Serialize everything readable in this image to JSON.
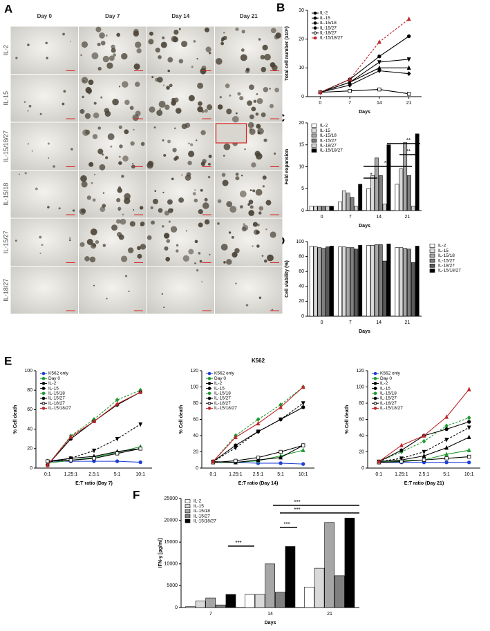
{
  "panels": [
    "A",
    "B",
    "C",
    "D",
    "E",
    "F"
  ],
  "micrographs": {
    "columns": [
      "Day 0",
      "Day 7",
      "Day 14",
      "Day 21"
    ],
    "rows": [
      "IL-2",
      "IL-15",
      "IL-15/18/27",
      "IL-15/18",
      "IL-15/27",
      "IL-18/27"
    ]
  },
  "chart_data": [
    {
      "type": "line",
      "ylabel": "Total cell number (x10⁶)",
      "xlabel": "Days",
      "x": [
        0,
        7,
        14,
        21
      ],
      "xlim": [
        -3,
        24
      ],
      "xticks": [
        0,
        7,
        14,
        21
      ],
      "ylim": [
        0,
        30
      ],
      "yticks": [
        0,
        10,
        20,
        30
      ],
      "legend": "top-left",
      "series": [
        {
          "name": "IL-2",
          "color": "#000000",
          "marker": "triangle",
          "values": [
            1.5,
            5,
            10,
            10
          ]
        },
        {
          "name": "IL-15",
          "color": "#000000",
          "marker": "triangle-down",
          "values": [
            1.5,
            5,
            12,
            13
          ]
        },
        {
          "name": "IL-15/18",
          "color": "#000000",
          "marker": "circle",
          "values": [
            1.5,
            6,
            14,
            21
          ]
        },
        {
          "name": "IL-15/27",
          "color": "#000000",
          "marker": "diamond",
          "values": [
            1.5,
            4,
            9,
            8
          ]
        },
        {
          "name": "IL-18/27",
          "color": "#000000",
          "marker": "open-square",
          "values": [
            1.5,
            2,
            2.5,
            1
          ]
        },
        {
          "name": "IL-15/18/27",
          "color": "#c0272d",
          "marker": "triangle",
          "dashed": true,
          "values": [
            1.5,
            6,
            19,
            27
          ]
        }
      ]
    },
    {
      "type": "bar",
      "ylabel": "Fold expansion",
      "xlabel": "Days",
      "categories": [
        "0",
        "7",
        "14",
        "21"
      ],
      "ylim": [
        0,
        20
      ],
      "yticks": [
        0,
        5,
        10,
        15,
        20
      ],
      "legend": "top-left",
      "annotations": [
        "*",
        "**",
        "**",
        "**"
      ],
      "series": [
        {
          "name": "IL-2",
          "color": "#ffffff",
          "values": [
            1,
            2,
            5,
            6
          ]
        },
        {
          "name": "IL-15",
          "color": "#d9d9d9",
          "values": [
            1,
            4.5,
            8,
            9.5
          ]
        },
        {
          "name": "IL-15/18",
          "color": "#a6a6a6",
          "values": [
            1,
            4,
            12,
            15.5
          ]
        },
        {
          "name": "IL-15/27",
          "color": "#7f7f7f",
          "values": [
            1,
            3,
            8,
            8
          ]
        },
        {
          "name": "IL-18/27",
          "color": "#d0d0d0",
          "values": [
            1,
            1,
            1.5,
            1
          ]
        },
        {
          "name": "IL-15/18/27",
          "color": "#000000",
          "values": [
            1,
            6,
            15,
            17.5
          ]
        }
      ]
    },
    {
      "type": "bar",
      "ylabel": "Cell viability (%)",
      "xlabel": "Days",
      "categories": [
        "0",
        "7",
        "14",
        "21"
      ],
      "ylim": [
        0,
        100
      ],
      "yticks": [
        0,
        20,
        40,
        60,
        80,
        100
      ],
      "legend": "right",
      "series": [
        {
          "name": "IL-2",
          "color": "#ffffff",
          "values": [
            94,
            93,
            95,
            92
          ]
        },
        {
          "name": "IL-15",
          "color": "#d9d9d9",
          "values": [
            93,
            93,
            95,
            92
          ]
        },
        {
          "name": "IL-15/18",
          "color": "#a6a6a6",
          "values": [
            92,
            92,
            96,
            91
          ]
        },
        {
          "name": "IL-15/27",
          "color": "#7f7f7f",
          "values": [
            91,
            92,
            96,
            90
          ]
        },
        {
          "name": "IL-18/27",
          "color": "#595959",
          "values": [
            93,
            90,
            74,
            72
          ]
        },
        {
          "name": "IL-15/18/27",
          "color": "#000000",
          "values": [
            94,
            95,
            97,
            94
          ]
        }
      ]
    },
    {
      "type": "line",
      "ylabel": "% Cell death",
      "xlabel": "E:T ratio (Day 7)",
      "categories": [
        "0:1",
        "1.25:1",
        "2.5:1",
        "5:1",
        "10:1"
      ],
      "ylim": [
        0,
        100
      ],
      "yticks": [
        0,
        20,
        40,
        60,
        80,
        100
      ],
      "legend": "top-left",
      "series": [
        {
          "name": "K562  only",
          "color": "#1f3fd6",
          "marker": "circle",
          "values": [
            7,
            7,
            7,
            7,
            6
          ]
        },
        {
          "name": "Day 0",
          "color": "#1f9a2e",
          "marker": "triangle",
          "values": [
            5,
            8,
            11,
            16,
            22
          ]
        },
        {
          "name": "IL-2",
          "color": "#000000",
          "marker": "triangle",
          "values": [
            7,
            10,
            12,
            17,
            20
          ]
        },
        {
          "name": "IL-15",
          "color": "#000000",
          "marker": "triangle-down",
          "dashed": true,
          "values": [
            6,
            10,
            18,
            30,
            45
          ]
        },
        {
          "name": "IL-15/18",
          "color": "#1f9a2e",
          "marker": "diamond",
          "dashed": true,
          "values": [
            3,
            33,
            50,
            70,
            80
          ]
        },
        {
          "name": "IL-15/27",
          "color": "#000000",
          "marker": "circle",
          "values": [
            3,
            30,
            48,
            65,
            78
          ]
        },
        {
          "name": "IL-18/27",
          "color": "#000000",
          "marker": "open-square",
          "values": [
            7,
            8,
            10,
            15,
            20
          ]
        },
        {
          "name": "IL-15/18/27",
          "color": "#c0272d",
          "marker": "triangle",
          "values": [
            3,
            32,
            48,
            66,
            78
          ]
        }
      ]
    },
    {
      "type": "line",
      "title": "K562",
      "ylabel": "% Cell death",
      "xlabel": "E:T ratio (Day 14)",
      "categories": [
        "0:1",
        "1.25:1",
        "2.5:1",
        "5:1",
        "10:1"
      ],
      "ylim": [
        0,
        120
      ],
      "yticks": [
        0,
        20,
        40,
        60,
        80,
        100,
        120
      ],
      "legend": "top-left",
      "series": [
        {
          "name": "K562  only",
          "color": "#1f3fd6",
          "marker": "circle",
          "values": [
            7,
            7,
            6,
            6,
            5
          ]
        },
        {
          "name": "Day 0",
          "color": "#1f9a2e",
          "marker": "triangle",
          "values": [
            7,
            7,
            9,
            15,
            22
          ]
        },
        {
          "name": "IL-2",
          "color": "#000000",
          "marker": "triangle",
          "values": [
            8,
            7,
            10,
            13,
            28
          ]
        },
        {
          "name": "IL-15",
          "color": "#000000",
          "marker": "triangle-down",
          "dashed": true,
          "values": [
            8,
            25,
            45,
            60,
            80
          ]
        },
        {
          "name": "IL-15/18",
          "color": "#1f9a2e",
          "marker": "diamond",
          "dashed": true,
          "values": [
            8,
            40,
            60,
            78,
            100
          ]
        },
        {
          "name": "IL-15/27",
          "color": "#000000",
          "marker": "circle",
          "values": [
            8,
            28,
            45,
            60,
            75
          ]
        },
        {
          "name": "IL-18/27",
          "color": "#000000",
          "marker": "open-square",
          "values": [
            7,
            9,
            13,
            20,
            28
          ]
        },
        {
          "name": "IL-15/18/27",
          "color": "#c0272d",
          "marker": "triangle",
          "values": [
            8,
            38,
            55,
            75,
            100
          ]
        }
      ]
    },
    {
      "type": "line",
      "ylabel": "% Cell death",
      "xlabel": "E:T ratio (Day 21)",
      "categories": [
        "0:1",
        "1.25:1",
        "2.5:1",
        "5:1",
        "10:1"
      ],
      "ylim": [
        0,
        120
      ],
      "yticks": [
        0,
        20,
        40,
        60,
        80,
        100,
        120
      ],
      "legend": "top-left",
      "series": [
        {
          "name": "K562  only",
          "color": "#1f3fd6",
          "marker": "circle",
          "values": [
            7,
            7,
            7,
            7,
            7
          ]
        },
        {
          "name": "Day 0",
          "color": "#1f9a2e",
          "marker": "triangle",
          "values": [
            7,
            9,
            10,
            17,
            22
          ]
        },
        {
          "name": "IL-2",
          "color": "#000000",
          "marker": "triangle",
          "values": [
            8,
            10,
            15,
            25,
            38
          ]
        },
        {
          "name": "IL-15",
          "color": "#000000",
          "marker": "triangle-down",
          "dashed": true,
          "values": [
            8,
            12,
            20,
            35,
            50
          ]
        },
        {
          "name": "IL-15/18",
          "color": "#1f9a2e",
          "marker": "diamond",
          "dashed": true,
          "values": [
            8,
            20,
            33,
            52,
            62
          ]
        },
        {
          "name": "IL-15/27",
          "color": "#000000",
          "marker": "circle",
          "values": [
            8,
            22,
            40,
            48,
            57
          ]
        },
        {
          "name": "IL-18/27",
          "color": "#000000",
          "marker": "open-square",
          "values": [
            7,
            8,
            10,
            12,
            14
          ]
        },
        {
          "name": "IL-15/18/27",
          "color": "#c0272d",
          "marker": "triangle",
          "values": [
            8,
            28,
            40,
            63,
            97
          ]
        }
      ]
    },
    {
      "type": "bar",
      "ylabel": "IFN-γ [pg/ml]",
      "xlabel": "Days",
      "categories": [
        "7",
        "14",
        "21"
      ],
      "ylim": [
        0,
        25000
      ],
      "yticks": [
        0,
        5000,
        10000,
        15000,
        20000,
        25000
      ],
      "legend": "top-left",
      "annotations": [
        "***",
        "***",
        "***",
        "***"
      ],
      "series": [
        {
          "name": "IL-2",
          "color": "#ffffff",
          "values": [
            200,
            3000,
            4700
          ]
        },
        {
          "name": "IL-15",
          "color": "#d9d9d9",
          "values": [
            1500,
            3000,
            9000
          ]
        },
        {
          "name": "IL-15/18",
          "color": "#a6a6a6",
          "values": [
            2200,
            10000,
            19500
          ]
        },
        {
          "name": "IL-15/27",
          "color": "#7f7f7f",
          "values": [
            600,
            3500,
            7300
          ]
        },
        {
          "name": "IL-15/18/27",
          "color": "#000000",
          "values": [
            3000,
            14000,
            20500
          ]
        }
      ]
    }
  ]
}
